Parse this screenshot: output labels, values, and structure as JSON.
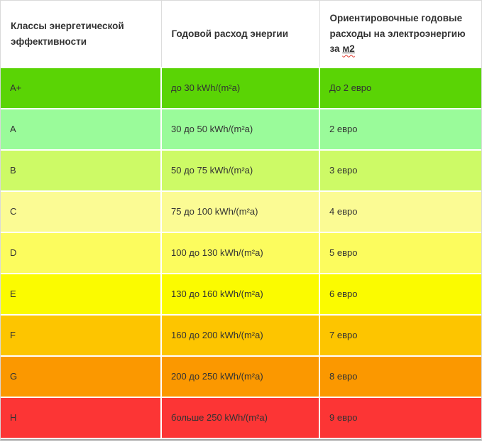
{
  "table": {
    "headers": [
      "Классы энергетической эффективности",
      "Годовой расход энергии",
      "Ориентировочные годовые расходы на электроэнергию за"
    ],
    "header_m2": "м2",
    "colors": {
      "header_text": "#333333",
      "cell_text": "#333333",
      "header_border": "#dddddd",
      "outer_border": "#d9d9d9",
      "row_separator": "#ffffff"
    },
    "rows": [
      {
        "class": "A+",
        "consumption": "до 30 kWh/(m²a)",
        "cost": "До 2 евро",
        "color": "#5ad405"
      },
      {
        "class": "A",
        "consumption": "30 до 50 kWh/(m²a)",
        "cost": "2 евро",
        "color": "#9afb9a"
      },
      {
        "class": "B",
        "consumption": "50 до 75 kWh/(m²a)",
        "cost": "3 евро",
        "color": "#cdfa66"
      },
      {
        "class": "C",
        "consumption": "75 до 100 kWh/(m²a)",
        "cost": "4 евро",
        "color": "#fbfb94"
      },
      {
        "class": "D",
        "consumption": "100 до 130 kWh/(m²a)",
        "cost": "5 евро",
        "color": "#fcfc5e"
      },
      {
        "class": "E",
        "consumption": "130 до 160 kWh/(m²a)",
        "cost": "6 евро",
        "color": "#fbfb00"
      },
      {
        "class": "F",
        "consumption": "160 до 200 kWh/(m²a)",
        "cost": "7 евро",
        "color": "#fdc500"
      },
      {
        "class": "G",
        "consumption": "200 до 250 kWh/(m²a)",
        "cost": "8 евро",
        "color": "#fb9800"
      },
      {
        "class": "H",
        "consumption": "больше 250 kWh/(m²a)",
        "cost": "9 евро",
        "color": "#fc3535"
      }
    ]
  }
}
